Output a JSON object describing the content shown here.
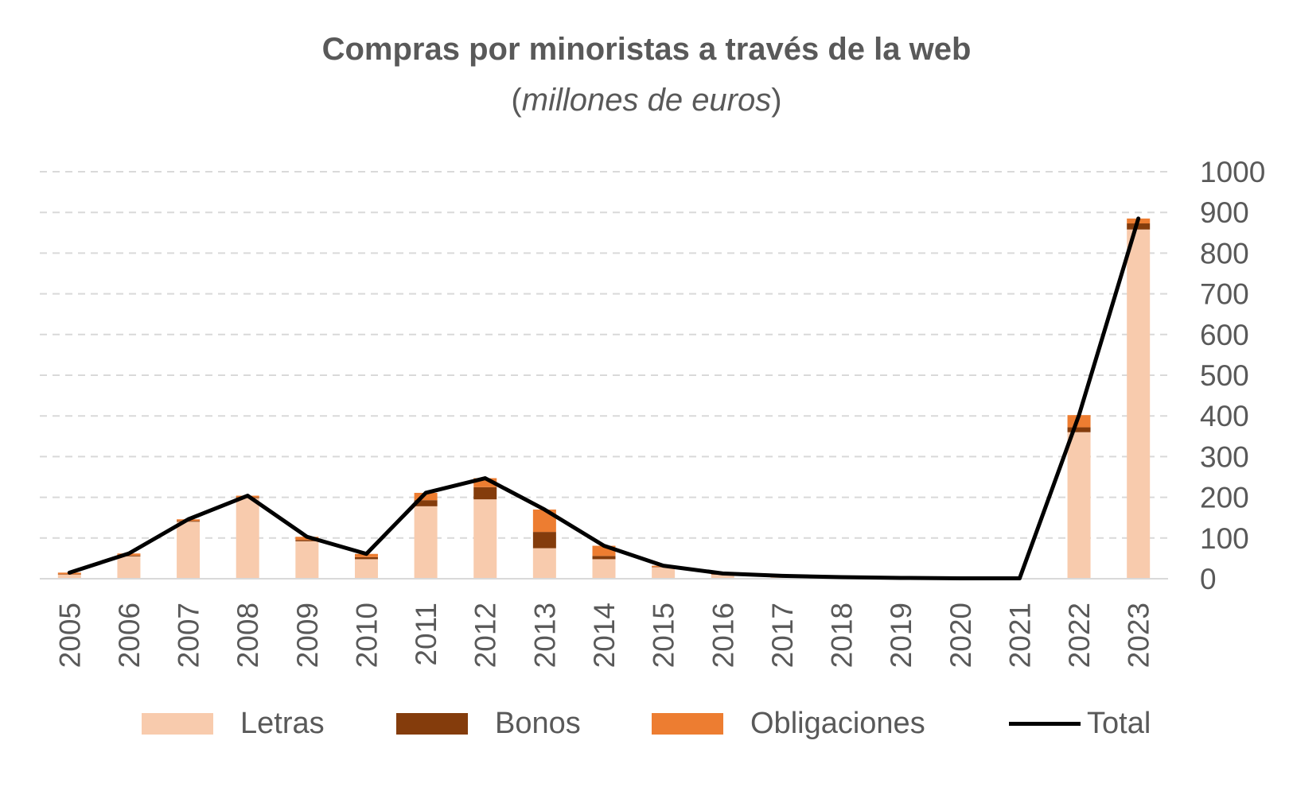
{
  "title": "Compras por minoristas a través de la web",
  "subtitle": {
    "open": "(",
    "text": "millones de euros",
    "close": ")"
  },
  "chart_data": {
    "type": "bar",
    "stacked": true,
    "categories": [
      "2005",
      "2006",
      "2007",
      "2008",
      "2009",
      "2010",
      "2011",
      "2012",
      "2013",
      "2014",
      "2015",
      "2016",
      "2017",
      "2018",
      "2019",
      "2020",
      "2021",
      "2022",
      "2023"
    ],
    "series": [
      {
        "name": "Letras",
        "color": "#F8CBAD",
        "values": [
          10,
          55,
          140,
          198,
          92,
          48,
          178,
          195,
          75,
          48,
          28,
          10,
          6,
          4,
          2,
          1,
          1,
          360,
          858
        ]
      },
      {
        "name": "Bonos",
        "color": "#843C0C",
        "values": [
          1,
          2,
          2,
          2,
          3,
          5,
          15,
          30,
          40,
          8,
          1,
          1,
          0,
          0,
          0,
          0,
          0,
          12,
          15
        ]
      },
      {
        "name": "Obligaciones",
        "color": "#ED7D31",
        "values": [
          4,
          5,
          4,
          4,
          8,
          8,
          18,
          22,
          55,
          25,
          3,
          2,
          1,
          0,
          0,
          0,
          0,
          30,
          12
        ]
      }
    ],
    "line": {
      "name": "Total",
      "color": "#000000",
      "values": [
        15,
        62,
        146,
        204,
        103,
        61,
        211,
        247,
        170,
        81,
        32,
        13,
        7,
        4,
        2,
        1,
        1,
        402,
        885
      ]
    },
    "ylim": [
      0,
      1000
    ],
    "yticks": [
      0,
      100,
      200,
      300,
      400,
      500,
      600,
      700,
      800,
      900,
      1000
    ],
    "grid": true,
    "y_axis_side": "right",
    "legend_position": "bottom"
  }
}
